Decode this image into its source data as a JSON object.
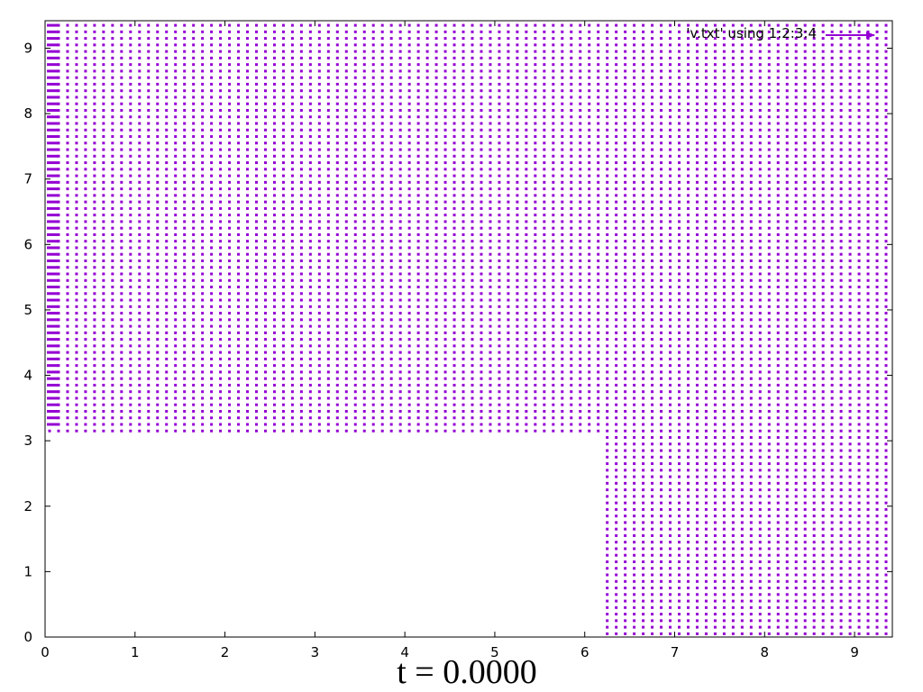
{
  "chart_data": {
    "type": "vector-field",
    "title": "t = 0.0000",
    "xlabel": "",
    "ylabel": "",
    "xlim": [
      0,
      9.42
    ],
    "ylim": [
      0,
      9.42
    ],
    "xticks": [
      0,
      1,
      2,
      3,
      4,
      5,
      6,
      7,
      8,
      9
    ],
    "yticks": [
      0,
      1,
      2,
      3,
      4,
      5,
      6,
      7,
      8,
      9
    ],
    "grid": false,
    "legend_position": "top-right",
    "series": [
      {
        "name": "'v.txt' using 1:2:3:4",
        "color": "#9400d3",
        "grid_spacing": 0.1,
        "x_range": [
          0.05,
          9.35
        ],
        "y_range": [
          0.05,
          9.35
        ],
        "empty_region": {
          "x": [
            0.0,
            6.25
          ],
          "y": [
            0.0,
            3.1
          ]
        },
        "vector": {
          "dx": 0.0,
          "dy": 0.0
        },
        "left_edge_vector": {
          "x": 0.05,
          "y_from": 3.2,
          "dx": 0.1,
          "dy": 0.0
        }
      }
    ]
  }
}
